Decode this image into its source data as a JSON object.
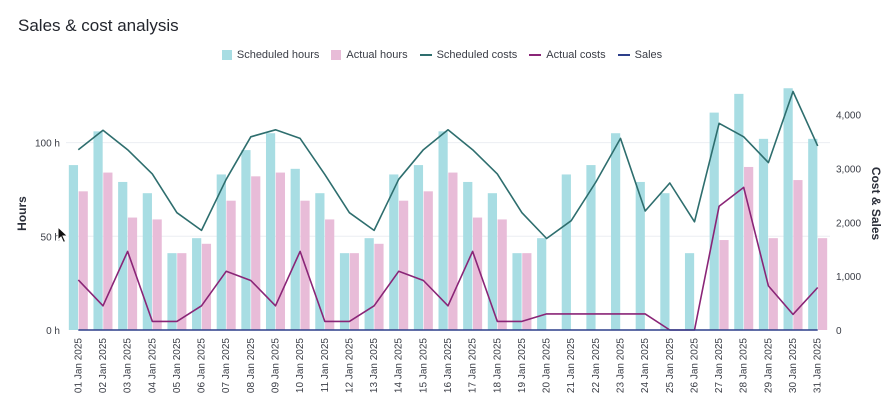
{
  "page_title": "Sales & cost analysis",
  "colors": {
    "scheduled_hours": "#a8dde3",
    "actual_hours": "#e8bcd8",
    "scheduled_costs": "#2e6e6e",
    "actual_costs": "#8a2577",
    "sales": "#2d3f8a",
    "grid": "#eceef2"
  },
  "chart_data": {
    "type": "bar",
    "title": "",
    "xlabel": "",
    "ylabel": "Hours",
    "y2label": "Cost & Sales",
    "ylim": [
      0,
      135
    ],
    "y2lim": [
      0,
      4700
    ],
    "yticks": [
      0,
      50,
      100
    ],
    "ytick_labels": [
      "0 h",
      "50 h",
      "100 h"
    ],
    "y2ticks": [
      0,
      1000,
      2000,
      3000,
      4000
    ],
    "y2tick_labels": [
      "0",
      "1,000",
      "2,000",
      "3,000",
      "4,000"
    ],
    "grid": true,
    "legend": "top-center",
    "categories": [
      "01 Jan 2025",
      "02 Jan 2025",
      "03 Jan 2025",
      "04 Jan 2025",
      "05 Jan 2025",
      "06 Jan 2025",
      "07 Jan 2025",
      "08 Jan 2025",
      "09 Jan 2025",
      "10 Jan 2025",
      "11 Jan 2025",
      "12 Jan 2025",
      "13 Jan 2025",
      "14 Jan 2025",
      "15 Jan 2025",
      "16 Jan 2025",
      "17 Jan 2025",
      "18 Jan 2025",
      "19 Jan 2025",
      "20 Jan 2025",
      "21 Jan 2025",
      "22 Jan 2025",
      "23 Jan 2025",
      "24 Jan 2025",
      "25 Jan 2025",
      "26 Jan 2025",
      "27 Jan 2025",
      "28 Jan 2025",
      "29 Jan 2025",
      "30 Jan 2025",
      "31 Jan 2025"
    ],
    "series": [
      {
        "name": "Scheduled hours",
        "kind": "bar",
        "axis": "left",
        "values": [
          88,
          106,
          79,
          73,
          41,
          49,
          83,
          96,
          105,
          86,
          73,
          41,
          49,
          83,
          88,
          106,
          79,
          73,
          41,
          49,
          83,
          88,
          105,
          79,
          73,
          41,
          116,
          126,
          102,
          129,
          102
        ]
      },
      {
        "name": "Actual hours",
        "kind": "bar",
        "axis": "left",
        "values": [
          74,
          84,
          60,
          59,
          41,
          46,
          69,
          82,
          84,
          69,
          59,
          41,
          46,
          69,
          74,
          84,
          60,
          59,
          41,
          0,
          0,
          0,
          0,
          0,
          0,
          0,
          48,
          87,
          49,
          80,
          49
        ]
      },
      {
        "name": "Scheduled costs",
        "kind": "line",
        "axis": "right",
        "values": [
          3350,
          3710,
          3350,
          2900,
          2180,
          1850,
          2800,
          3590,
          3720,
          3560,
          2890,
          2180,
          1850,
          2800,
          3350,
          3720,
          3350,
          2900,
          2180,
          1700,
          2030,
          2750,
          3560,
          2210,
          2730,
          2010,
          3840,
          3590,
          3110,
          4430,
          3420
        ]
      },
      {
        "name": "Actual costs",
        "kind": "line",
        "axis": "right",
        "values": [
          930,
          450,
          1460,
          160,
          160,
          450,
          1090,
          920,
          450,
          1460,
          160,
          160,
          450,
          1090,
          920,
          450,
          1460,
          160,
          160,
          300,
          300,
          300,
          300,
          300,
          0,
          0,
          2300,
          2650,
          820,
          290,
          790
        ]
      },
      {
        "name": "Sales",
        "kind": "line",
        "axis": "right",
        "values": [
          0,
          0,
          0,
          0,
          0,
          0,
          0,
          0,
          0,
          0,
          0,
          0,
          0,
          0,
          0,
          0,
          0,
          0,
          0,
          0,
          0,
          0,
          0,
          0,
          0,
          0,
          0,
          0,
          0,
          0,
          0
        ]
      }
    ]
  }
}
